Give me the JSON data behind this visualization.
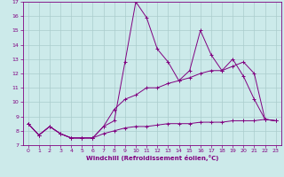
{
  "xlabel": "Windchill (Refroidissement éolien,°C)",
  "bg_color": "#cceaea",
  "line_color": "#800080",
  "grid_color": "#aacccc",
  "xlim": [
    -0.5,
    23.5
  ],
  "ylim": [
    7,
    17
  ],
  "xticks": [
    0,
    1,
    2,
    3,
    4,
    5,
    6,
    7,
    8,
    9,
    10,
    11,
    12,
    13,
    14,
    15,
    16,
    17,
    18,
    19,
    20,
    21,
    22,
    23
  ],
  "yticks": [
    7,
    8,
    9,
    10,
    11,
    12,
    13,
    14,
    15,
    16,
    17
  ],
  "series": [
    {
      "x": [
        0,
        1,
        2,
        3,
        4,
        5,
        6,
        7,
        8,
        9,
        10,
        11,
        12,
        13,
        14,
        15,
        16,
        17,
        18,
        19,
        20,
        21,
        22,
        23
      ],
      "y": [
        8.5,
        7.7,
        8.3,
        7.8,
        7.5,
        7.5,
        7.5,
        8.3,
        8.7,
        12.8,
        17.0,
        15.9,
        13.7,
        12.8,
        11.5,
        12.2,
        15.0,
        13.3,
        12.2,
        13.0,
        11.8,
        10.2,
        8.8,
        8.7
      ]
    },
    {
      "x": [
        0,
        1,
        2,
        3,
        4,
        5,
        6,
        7,
        8,
        9,
        10,
        11,
        12,
        13,
        14,
        15,
        16,
        17,
        18,
        19,
        20,
        21,
        22,
        23
      ],
      "y": [
        8.5,
        7.7,
        8.3,
        7.8,
        7.5,
        7.5,
        7.5,
        8.3,
        9.5,
        10.2,
        10.5,
        11.0,
        11.0,
        11.3,
        11.5,
        11.7,
        12.0,
        12.2,
        12.2,
        12.5,
        12.8,
        12.0,
        8.8,
        8.7
      ]
    },
    {
      "x": [
        0,
        1,
        2,
        3,
        4,
        5,
        6,
        7,
        8,
        9,
        10,
        11,
        12,
        13,
        14,
        15,
        16,
        17,
        18,
        19,
        20,
        21,
        22,
        23
      ],
      "y": [
        8.5,
        7.7,
        8.3,
        7.8,
        7.5,
        7.5,
        7.5,
        7.8,
        8.0,
        8.2,
        8.3,
        8.3,
        8.4,
        8.5,
        8.5,
        8.5,
        8.6,
        8.6,
        8.6,
        8.7,
        8.7,
        8.7,
        8.8,
        8.7
      ]
    }
  ]
}
